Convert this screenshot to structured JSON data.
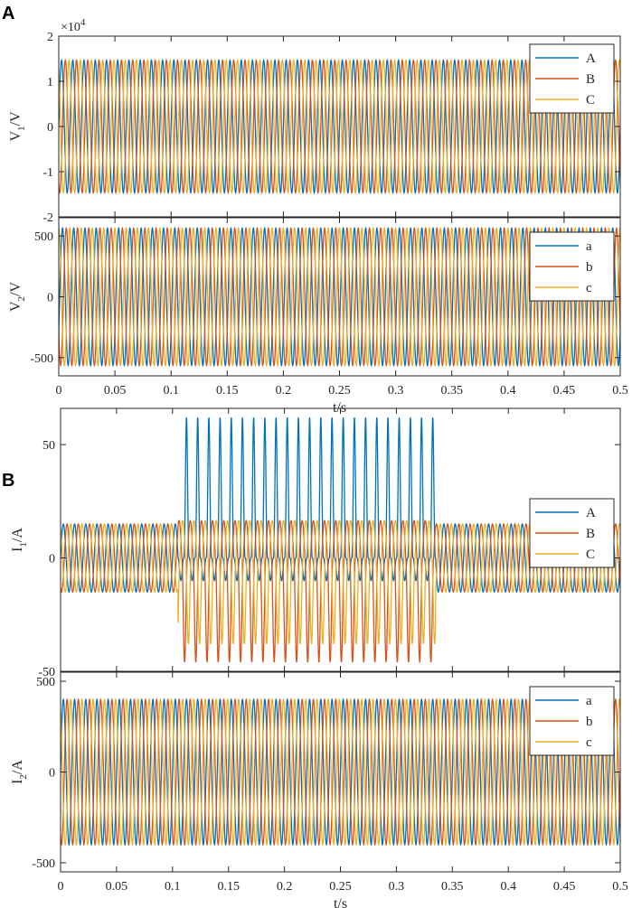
{
  "figure": {
    "panels": [
      {
        "label": "A"
      },
      {
        "label": "B"
      }
    ]
  },
  "colors": {
    "phase1": "#0072BD",
    "phase2": "#D95319",
    "phase3": "#EDB120",
    "axis": "#262626"
  },
  "chart_data": [
    {
      "type": "line",
      "panel": "A",
      "ylabel_main": "V",
      "ylabel_sub": "1",
      "ylabel_unit": "/V",
      "xlabel": "",
      "xlim": [
        0,
        0.5
      ],
      "ylim": [
        -20000,
        20000
      ],
      "y_ticks": [
        -20000,
        -10000,
        0,
        10000,
        20000
      ],
      "y_tick_labels": [
        "-2",
        "-1",
        "0",
        "1",
        "2"
      ],
      "x_tick_labels_visible": false,
      "exponent_label": "×10",
      "exponent_power": "4",
      "frequency_hz": 100,
      "legend_location": "top-right",
      "series": [
        {
          "name": "A",
          "amplitude": 14700,
          "phase_deg": 0
        },
        {
          "name": "B",
          "amplitude": 14700,
          "phase_deg": -120
        },
        {
          "name": "C",
          "amplitude": 14700,
          "phase_deg": 120
        }
      ]
    },
    {
      "type": "line",
      "panel": "A",
      "ylabel_main": "V",
      "ylabel_sub": "2",
      "ylabel_unit": "/V",
      "xlabel": "t/s",
      "xlim": [
        0,
        0.5
      ],
      "ylim": [
        -650,
        650
      ],
      "y_ticks": [
        -500,
        0,
        500
      ],
      "y_tick_labels": [
        "-500",
        "0",
        "500"
      ],
      "x_ticks": [
        0,
        0.05,
        0.1,
        0.15,
        0.2,
        0.25,
        0.3,
        0.35,
        0.4,
        0.45,
        0.5
      ],
      "x_tick_labels": [
        "0",
        "0.05",
        "0.1",
        "0.15",
        "0.2",
        "0.25",
        "0.3",
        "0.35",
        "0.4",
        "0.45",
        "0.5"
      ],
      "x_tick_labels_visible": true,
      "frequency_hz": 100,
      "legend_location": "top-right",
      "series": [
        {
          "name": "a",
          "amplitude": 565,
          "phase_deg": -30
        },
        {
          "name": "b",
          "amplitude": 565,
          "phase_deg": -150
        },
        {
          "name": "c",
          "amplitude": 565,
          "phase_deg": 90
        }
      ]
    },
    {
      "type": "line",
      "panel": "B",
      "ylabel_main": "I",
      "ylabel_sub": "1",
      "ylabel_unit": "/A",
      "xlabel": "",
      "xlim": [
        0,
        0.5
      ],
      "ylim": [
        -50,
        66
      ],
      "y_ticks": [
        -50,
        0,
        50
      ],
      "y_tick_labels": [
        "-50",
        "0",
        "50"
      ],
      "x_tick_labels_visible": false,
      "frequency_hz": 100,
      "fault_interval": [
        0.105,
        0.335
      ],
      "legend_location": "top-right",
      "series": [
        {
          "name": "A",
          "amplitude": 15,
          "phase_deg": 0,
          "fault_peak": 62
        },
        {
          "name": "B",
          "amplitude": 15,
          "phase_deg": -120,
          "fault_trough": -46
        },
        {
          "name": "C",
          "amplitude": 15,
          "phase_deg": 120,
          "fault_trough": -38
        }
      ]
    },
    {
      "type": "line",
      "panel": "B",
      "ylabel_main": "I",
      "ylabel_sub": "2",
      "ylabel_unit": "/A",
      "xlabel": "t/s",
      "xlim": [
        0,
        0.5
      ],
      "ylim": [
        -550,
        550
      ],
      "y_ticks": [
        -500,
        0,
        500
      ],
      "y_tick_labels": [
        "-500",
        "0",
        "500"
      ],
      "x_ticks": [
        0,
        0.05,
        0.1,
        0.15,
        0.2,
        0.25,
        0.3,
        0.35,
        0.4,
        0.45,
        0.5
      ],
      "x_tick_labels": [
        "0",
        "0.05",
        "0.1",
        "0.15",
        "0.2",
        "0.25",
        "0.3",
        "0.35",
        "0.4",
        "0.45",
        "0.5"
      ],
      "x_tick_labels_visible": true,
      "frequency_hz": 100,
      "legend_location": "top-right",
      "series": [
        {
          "name": "a",
          "amplitude": 400,
          "phase_deg": 0
        },
        {
          "name": "b",
          "amplitude": 400,
          "phase_deg": -120
        },
        {
          "name": "c",
          "amplitude": 400,
          "phase_deg": 120
        }
      ]
    }
  ]
}
